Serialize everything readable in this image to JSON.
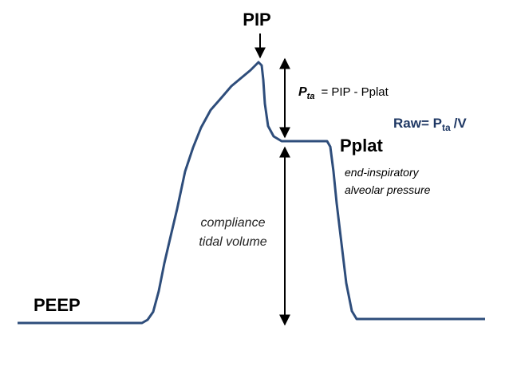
{
  "labels": {
    "pip": "PIP",
    "pta_symbol": "P",
    "pta_sub": "ta",
    "pta_equation": "= PIP - Pplat",
    "raw_prefix": "Raw= P",
    "raw_sub": "ta",
    "raw_suffix": "/V",
    "pplat": "Pplat",
    "pplat_note": [
      "end-inspiratory",
      "alveolar pressure"
    ],
    "compliance_note": [
      "compliance",
      "tidal volume"
    ],
    "peep": "PEEP"
  }
}
